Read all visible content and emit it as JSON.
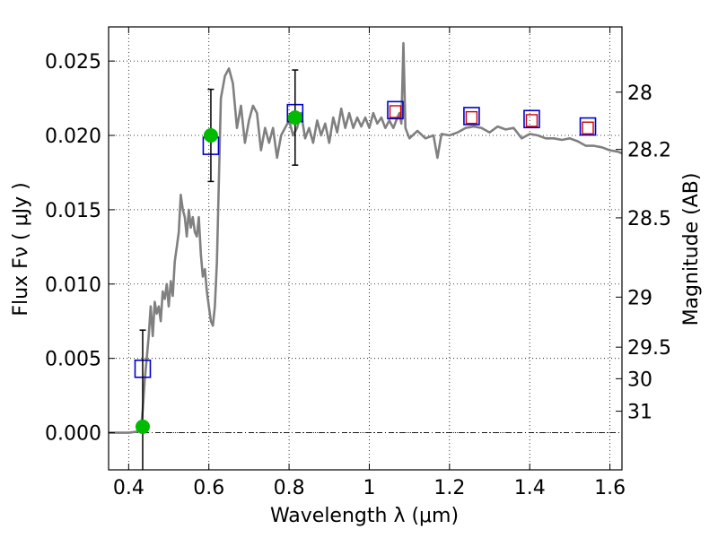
{
  "chart_data": {
    "type": "line",
    "xlabel": "Wavelength  λ (μm)",
    "ylabel": "Flux  Fν  ( μJy )",
    "ylabel_right": "Magnitude (AB)",
    "xlim": [
      0.35,
      1.63
    ],
    "ylim": [
      -0.0025,
      0.0273
    ],
    "x_ticks": [
      0.4,
      0.6,
      0.8,
      1.0,
      1.2,
      1.4,
      1.6
    ],
    "x_tick_labels": [
      "0.4",
      "0.6",
      "0.8",
      "1",
      "1.2",
      "1.4",
      "1.6"
    ],
    "y_ticks": [
      0.0,
      0.005,
      0.01,
      0.015,
      0.02,
      0.025
    ],
    "y_tick_labels": [
      "0.000",
      "0.005",
      "0.010",
      "0.015",
      "0.020",
      "0.025"
    ],
    "mag_ticks": [
      28,
      28.2,
      28.5,
      29,
      29.5,
      30,
      31
    ],
    "mag_tick_labels": [
      "28",
      "28.2",
      "28.5",
      "29",
      "29.5",
      "30",
      "31"
    ],
    "grid": true,
    "colors": {
      "model": "#808080",
      "observed": "#00bb00",
      "model_phot": "#0000cc",
      "model_phot_inner": "#cc0000",
      "errorbar": "#000000"
    },
    "series": [
      {
        "type": "line",
        "x": [
          0.35,
          0.4,
          0.43,
          0.435,
          0.44,
          0.445,
          0.45,
          0.455,
          0.46,
          0.465,
          0.47,
          0.475,
          0.48,
          0.485,
          0.49,
          0.495,
          0.5,
          0.505,
          0.51,
          0.515,
          0.52,
          0.525,
          0.53,
          0.535,
          0.54,
          0.545,
          0.55,
          0.555,
          0.56,
          0.565,
          0.57,
          0.575,
          0.58,
          0.585,
          0.59,
          0.595,
          0.6,
          0.605,
          0.61,
          0.615,
          0.62,
          0.63,
          0.64,
          0.65,
          0.66,
          0.67,
          0.68,
          0.69,
          0.7,
          0.71,
          0.72,
          0.73,
          0.74,
          0.75,
          0.76,
          0.77,
          0.78,
          0.79,
          0.8,
          0.81,
          0.82,
          0.83,
          0.84,
          0.85,
          0.86,
          0.87,
          0.88,
          0.89,
          0.9,
          0.91,
          0.92,
          0.93,
          0.94,
          0.95,
          0.96,
          0.97,
          0.98,
          0.99,
          1.0,
          1.01,
          1.02,
          1.03,
          1.04,
          1.05,
          1.06,
          1.07,
          1.075,
          1.08,
          1.085,
          1.09,
          1.1,
          1.12,
          1.14,
          1.16,
          1.17,
          1.18,
          1.2,
          1.22,
          1.24,
          1.26,
          1.28,
          1.3,
          1.32,
          1.34,
          1.36,
          1.38,
          1.4,
          1.42,
          1.44,
          1.46,
          1.48,
          1.5,
          1.52,
          1.54,
          1.56,
          1.58,
          1.6,
          1.62,
          1.63
        ],
        "y": [
          0.0,
          0.0,
          0.0001,
          0.0015,
          0.0035,
          0.005,
          0.0065,
          0.0085,
          0.0065,
          0.0088,
          0.008,
          0.0085,
          0.0075,
          0.0095,
          0.009,
          0.01,
          0.0085,
          0.0102,
          0.0092,
          0.0115,
          0.0125,
          0.0135,
          0.016,
          0.015,
          0.0145,
          0.0132,
          0.015,
          0.0138,
          0.0145,
          0.0135,
          0.0132,
          0.0145,
          0.012,
          0.0105,
          0.011,
          0.0095,
          0.0085,
          0.0075,
          0.0072,
          0.0085,
          0.0115,
          0.0225,
          0.024,
          0.0245,
          0.0235,
          0.0205,
          0.022,
          0.0195,
          0.021,
          0.022,
          0.0215,
          0.019,
          0.0205,
          0.0195,
          0.0205,
          0.0185,
          0.02,
          0.0205,
          0.021,
          0.02,
          0.0205,
          0.0215,
          0.0198,
          0.0205,
          0.0195,
          0.021,
          0.02,
          0.0208,
          0.0195,
          0.0212,
          0.0202,
          0.0218,
          0.0205,
          0.0215,
          0.0205,
          0.0212,
          0.0206,
          0.0212,
          0.0205,
          0.0215,
          0.0208,
          0.0212,
          0.0205,
          0.021,
          0.0205,
          0.0212,
          0.0215,
          0.0208,
          0.0262,
          0.0205,
          0.0198,
          0.0203,
          0.0198,
          0.02,
          0.0185,
          0.0201,
          0.02,
          0.0202,
          0.0205,
          0.0206,
          0.0205,
          0.0202,
          0.0206,
          0.0204,
          0.0205,
          0.0198,
          0.0201,
          0.02,
          0.0198,
          0.0198,
          0.0197,
          0.0198,
          0.0196,
          0.0193,
          0.0193,
          0.0192,
          0.019,
          0.0189,
          0.0188
        ]
      },
      {
        "type": "scatter",
        "marker": "circle",
        "x": [
          0.435,
          0.605,
          0.815
        ],
        "y": [
          0.0004,
          0.02,
          0.0212
        ],
        "yerr": [
          0.0065,
          0.0031,
          0.0032
        ]
      },
      {
        "type": "scatter",
        "marker": "square",
        "x": [
          0.435,
          0.605,
          0.815,
          1.065,
          1.255,
          1.405,
          1.545
        ],
        "y": [
          0.0043,
          0.0193,
          0.0215,
          0.0217,
          0.0213,
          0.0211,
          0.0206
        ]
      },
      {
        "type": "scatter",
        "marker": "square-small",
        "x": [
          1.065,
          1.255,
          1.405,
          1.545
        ],
        "y": [
          0.0216,
          0.0212,
          0.021,
          0.0205
        ]
      }
    ]
  }
}
